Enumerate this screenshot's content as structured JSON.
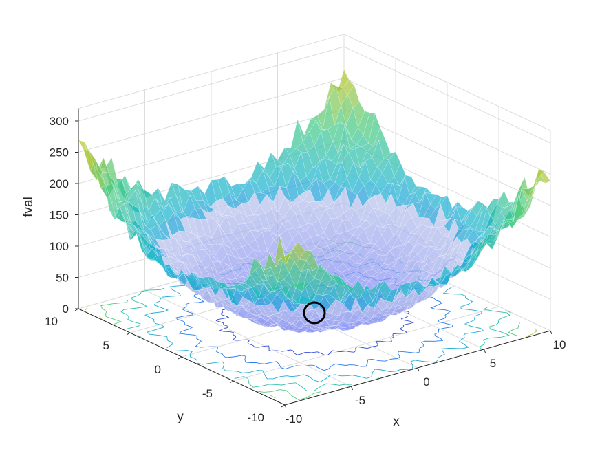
{
  "chart_data": {
    "type": "surface",
    "title": "",
    "xlabel": "x",
    "ylabel": "y",
    "zlabel": "fval",
    "xlim": [
      -10,
      10
    ],
    "ylim": [
      -10,
      10
    ],
    "zlim": [
      0,
      320
    ],
    "x_ticks": [
      "-10",
      "-5",
      "0",
      "5",
      "10"
    ],
    "y_ticks": [
      "-10",
      "-5",
      "0",
      "5",
      "10"
    ],
    "z_ticks": [
      "0",
      "50",
      "100",
      "150",
      "200",
      "250",
      "300"
    ],
    "grid": true,
    "function": "x^2 + y^2 + noise (noisy paraboloid)",
    "approx_max_fval": 320,
    "minimum_marker": {
      "x": 0,
      "y": 0,
      "fval": 0,
      "shape": "circle"
    },
    "contour_levels": [
      40,
      80,
      120,
      160,
      200,
      240,
      280
    ],
    "colormap": [
      "#3e26a8",
      "#2f66f4",
      "#1fb5cf",
      "#48cb86",
      "#c1c62a",
      "#fbe61f"
    ]
  }
}
